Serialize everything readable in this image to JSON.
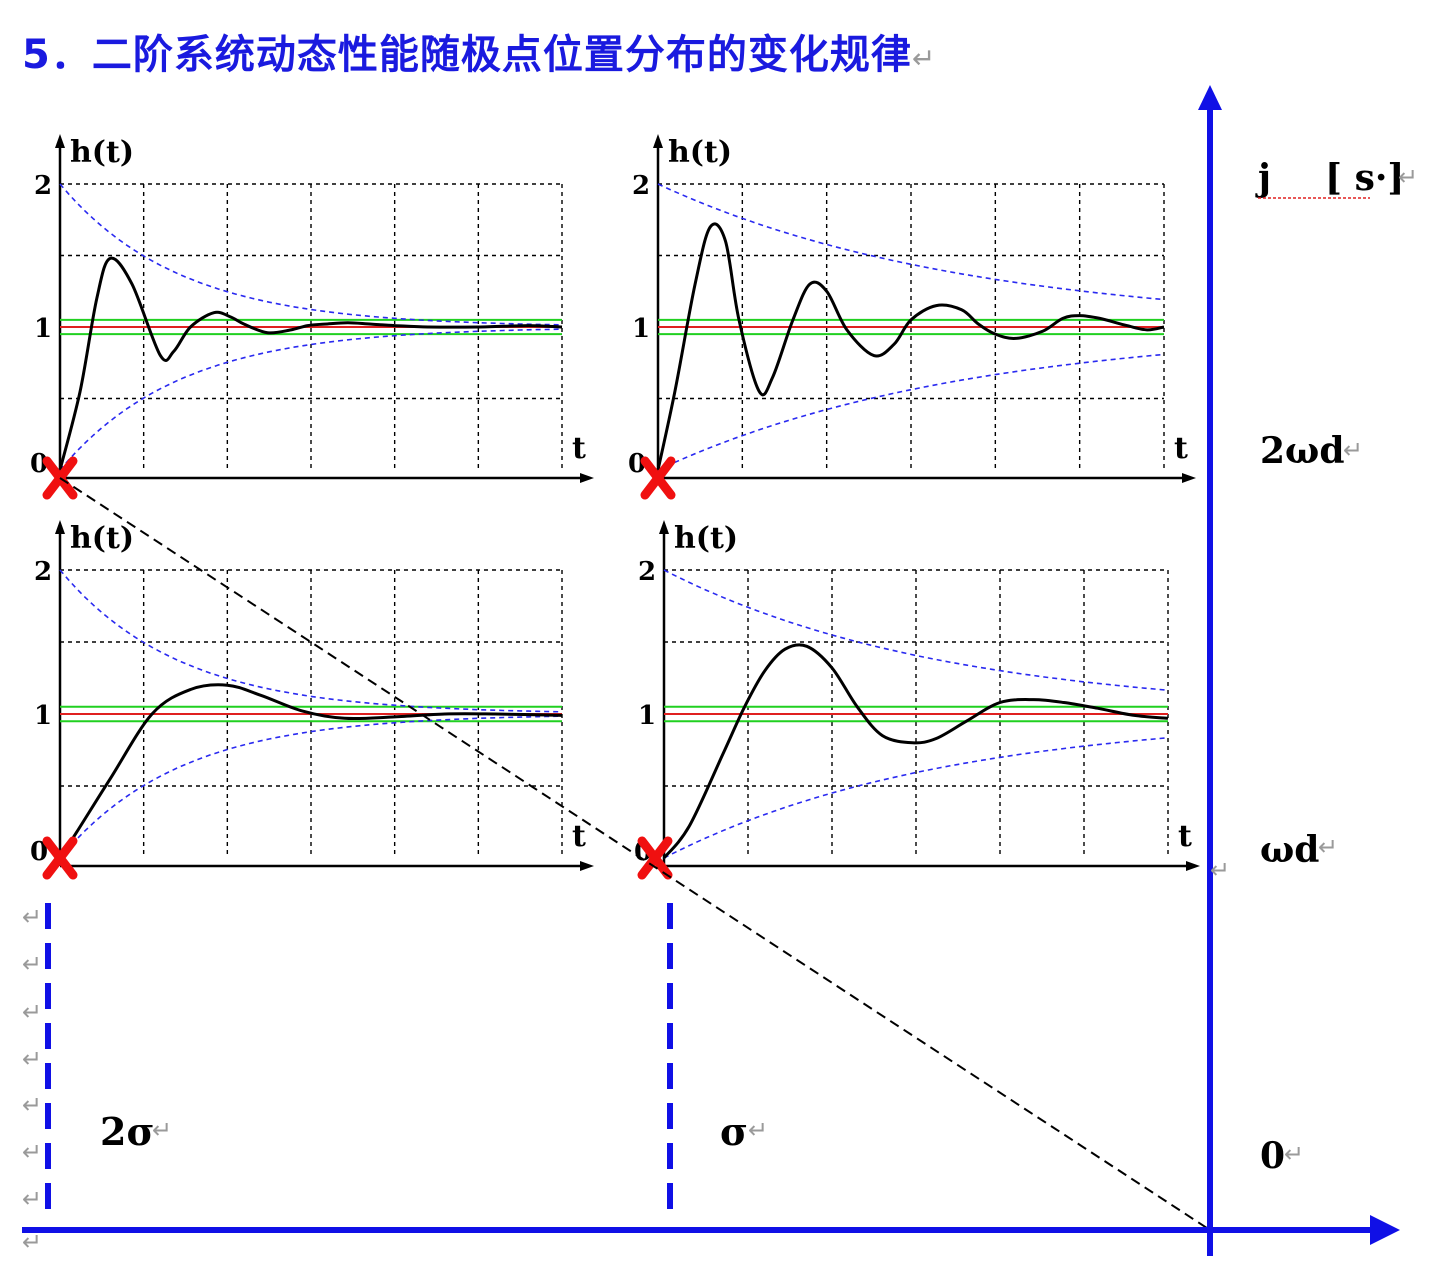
{
  "title": "5．二阶系统动态性能随极点位置分布的变化规律",
  "para_mark": "↵",
  "colors": {
    "title": "#1a1adf",
    "axis_blue": "#1010e6",
    "pole_red": "#f01010",
    "envelope_blue": "#2a2af0",
    "band_green": "#20d020",
    "steady_red": "#e02020",
    "curve": "#000000"
  },
  "plane": {
    "imag_axis_label": "j",
    "unit_label": "[ s·]",
    "axis_ticks_imag": [
      "2ωd",
      "ωd",
      "0"
    ],
    "axis_ticks_real": [
      "2σ",
      "σ"
    ]
  },
  "plot_labels": {
    "y_axis": "h(t)",
    "x_axis": "t",
    "y_ticks": [
      "0",
      "1",
      "2"
    ]
  },
  "chart_data": [
    {
      "type": "line",
      "position": "top-left",
      "pole": {
        "real": "2σ",
        "imag": "2ωd"
      },
      "x": [
        0,
        0.12,
        0.22,
        0.3,
        0.43,
        0.6,
        0.68,
        0.78,
        0.92,
        1.02,
        1.1,
        1.24,
        1.38,
        1.48,
        1.58,
        1.72,
        1.86,
        2.0,
        2.2,
        2.5,
        2.8,
        3.0
      ],
      "y": [
        0,
        0.55,
        1.2,
        1.48,
        1.3,
        0.8,
        0.83,
        1.0,
        1.1,
        1.07,
        1.02,
        0.96,
        0.98,
        1.01,
        1.02,
        1.03,
        1.02,
        1.01,
        1.0,
        1.0,
        1.01,
        1.0
      ],
      "ylim": [
        0,
        2
      ]
    },
    {
      "type": "line",
      "position": "top-right",
      "pole": {
        "real": "σ",
        "imag": "2ωd"
      },
      "x": [
        0,
        0.1,
        0.22,
        0.31,
        0.4,
        0.48,
        0.6,
        0.68,
        0.8,
        0.9,
        1.0,
        1.12,
        1.28,
        1.4,
        1.5,
        1.65,
        1.8,
        1.9,
        2.0,
        2.12,
        2.28,
        2.4,
        2.5,
        2.62,
        2.78,
        2.9,
        3.0
      ],
      "y": [
        0,
        0.55,
        1.3,
        1.7,
        1.6,
        1.05,
        0.55,
        0.65,
        1.05,
        1.3,
        1.25,
        0.98,
        0.8,
        0.88,
        1.05,
        1.15,
        1.12,
        1.02,
        0.95,
        0.92,
        0.97,
        1.06,
        1.08,
        1.06,
        1.01,
        0.98,
        1.0
      ],
      "ylim": [
        0,
        2
      ]
    },
    {
      "type": "line",
      "position": "bottom-left",
      "pole": {
        "real": "2σ",
        "imag": "ωd"
      },
      "x": [
        0,
        0.1,
        0.3,
        0.55,
        0.78,
        1.0,
        1.2,
        1.45,
        1.7,
        2.0,
        2.3,
        2.6,
        3.0
      ],
      "y": [
        0,
        0.18,
        0.55,
        1.0,
        1.17,
        1.2,
        1.13,
        1.02,
        0.97,
        0.98,
        1.0,
        1.0,
        0.99
      ],
      "ylim": [
        0,
        2
      ]
    },
    {
      "type": "line",
      "position": "bottom-right",
      "pole": {
        "real": "σ",
        "imag": "ωd"
      },
      "x": [
        0,
        0.15,
        0.35,
        0.48,
        0.6,
        0.72,
        0.85,
        1.0,
        1.15,
        1.3,
        1.48,
        1.62,
        1.8,
        2.0,
        2.2,
        2.38,
        2.58,
        2.8,
        3.0
      ],
      "y": [
        0,
        0.22,
        0.72,
        1.05,
        1.3,
        1.45,
        1.47,
        1.32,
        1.05,
        0.85,
        0.8,
        0.83,
        0.95,
        1.08,
        1.1,
        1.08,
        1.04,
        0.99,
        0.97
      ],
      "ylim": [
        0,
        2
      ]
    }
  ]
}
